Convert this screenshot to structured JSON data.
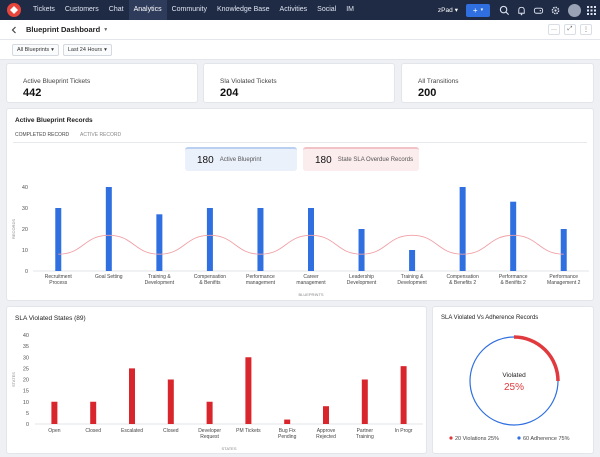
{
  "nav": {
    "items": [
      "Tickets",
      "Customers",
      "Chat",
      "Analytics",
      "Community",
      "Knowledge Base",
      "Activities",
      "Social",
      "IM"
    ],
    "active_index": 3,
    "portal": "zPad",
    "plus_label": "+"
  },
  "header": {
    "title": "Blueprint Dashboard"
  },
  "filters": {
    "blueprint": "All Blueprints",
    "range": "Last 24 Hours"
  },
  "kpis": [
    {
      "label": "Active Blueprint Tickets",
      "value": "442"
    },
    {
      "label": "Sla Violated Tickets",
      "value": "204"
    },
    {
      "label": "All Transitions",
      "value": "200"
    }
  ],
  "records": {
    "title": "Active Blueprint Records",
    "tabs": [
      "COMPLETED RECORD",
      "ACTIVE RECORD"
    ],
    "summary_blue": {
      "value": "180",
      "label": "Active Blueprint"
    },
    "summary_red": {
      "value": "180",
      "label": "State SLA Overdue Records"
    }
  },
  "sla_states": {
    "title": "SLA Violated States (89)"
  },
  "adherence": {
    "title": "SLA Violated Vs Adherence Records",
    "center_label": "Violated",
    "center_value": "25%",
    "legend": [
      "20 Violations 25%",
      "60 Adherence 75%"
    ],
    "violated_color": "#e03a3e",
    "adherence_color": "#2f6fe0"
  },
  "chart_data": [
    {
      "type": "bar",
      "ylabel": "RECORDS",
      "xlabel": "BLUEPRINTS",
      "ylim": [
        0,
        40
      ],
      "yticks": [
        0,
        10,
        20,
        30,
        40
      ],
      "categories": [
        "Recruitment Process",
        "Goal Setting",
        "Training & Development",
        "Compensation & Benifits",
        "Performance management",
        "Career management",
        "Leadership Development",
        "Training & Development",
        "Compensation & Benefits 2",
        "Performance & Benifits 2",
        "Performance Management 2"
      ],
      "values": [
        30,
        40,
        27,
        30,
        30,
        30,
        20,
        10,
        40,
        33,
        20
      ],
      "bar_color": "#2f6fe0",
      "trend_color": "#f0a0a6"
    },
    {
      "type": "bar",
      "ylabel": "STATES",
      "xlabel": "STATES",
      "ylim": [
        0,
        40
      ],
      "yticks": [
        0,
        5,
        10,
        15,
        20,
        25,
        30,
        35,
        40
      ],
      "categories": [
        "Open",
        "Closed",
        "Escalated",
        "Closed",
        "Developer Request",
        "PM Tickets",
        "Bug Fix Pending",
        "Approve Rejected",
        "Partner Training",
        "In Progr"
      ],
      "values": [
        10,
        10,
        25,
        20,
        10,
        30,
        2,
        8,
        20,
        26
      ],
      "bar_color": "#d9262c"
    }
  ]
}
